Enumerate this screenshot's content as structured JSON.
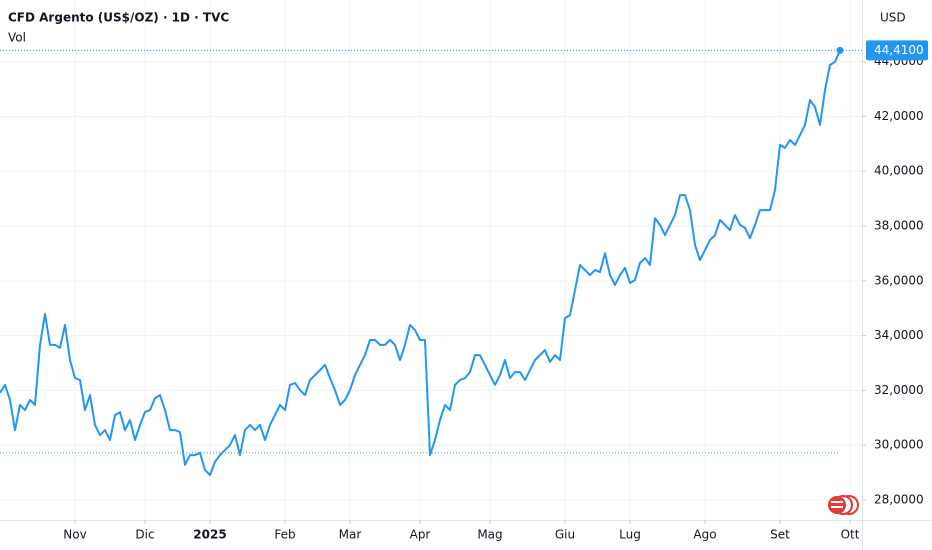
{
  "chart_data": {
    "type": "line",
    "title": "CFD Argento (US$/OZ) · 1D · TVC",
    "subtitle": "Vol",
    "y_axis_label": "USD",
    "color": "#2196f3",
    "grid": true,
    "xlim": [
      0,
      172.4
    ],
    "xticks": [
      {
        "value": 15,
        "label": "Nov"
      },
      {
        "value": 29,
        "label": "Dic"
      },
      {
        "value": 42,
        "label": "2025"
      },
      {
        "value": 57,
        "label": "Feb"
      },
      {
        "value": 70,
        "label": "Mar"
      },
      {
        "value": 84,
        "label": "Apr"
      },
      {
        "value": 98,
        "label": "Mag"
      },
      {
        "value": 113,
        "label": "Giu"
      },
      {
        "value": 126,
        "label": "Lug"
      },
      {
        "value": 141,
        "label": "Ago"
      },
      {
        "value": 156,
        "label": "Set"
      },
      {
        "value": 170,
        "label": "Ott"
      }
    ],
    "ylim": [
      27.27,
      46.25
    ],
    "yticks": [
      {
        "value": 28,
        "label": "28,0000"
      },
      {
        "value": 30,
        "label": "30,0000"
      },
      {
        "value": 32,
        "label": "32,0000"
      },
      {
        "value": 34,
        "label": "34,0000"
      },
      {
        "value": 36,
        "label": "36,0000"
      },
      {
        "value": 38,
        "label": "38,0000"
      },
      {
        "value": 40,
        "label": "40,0000"
      },
      {
        "value": 42,
        "label": "42,0000"
      },
      {
        "value": 44,
        "label": "44,0000"
      }
    ],
    "reference_line": 29.72,
    "last_price": {
      "value": 44.41,
      "label": "44,4100"
    },
    "values": [
      31.91,
      32.2,
      31.65,
      30.55,
      31.47,
      31.28,
      31.65,
      31.47,
      33.66,
      34.79,
      33.66,
      33.66,
      33.55,
      34.39,
      33.11,
      32.45,
      32.38,
      31.28,
      31.83,
      30.74,
      30.37,
      30.55,
      30.19,
      31.1,
      31.21,
      30.55,
      30.92,
      30.19,
      30.74,
      31.21,
      31.28,
      31.72,
      31.83,
      31.28,
      30.55,
      30.55,
      30.48,
      29.28,
      29.64,
      29.64,
      29.72,
      29.09,
      28.91,
      29.39,
      29.64,
      29.82,
      30.01,
      30.37,
      29.64,
      30.55,
      30.74,
      30.55,
      30.74,
      30.19,
      30.74,
      31.1,
      31.47,
      31.28,
      32.2,
      32.27,
      32.01,
      31.83,
      32.38,
      32.56,
      32.74,
      32.93,
      32.45,
      32.01,
      31.47,
      31.65,
      32.01,
      32.56,
      32.93,
      33.29,
      33.84,
      33.84,
      33.66,
      33.66,
      33.84,
      33.66,
      33.11,
      33.66,
      34.39,
      34.2,
      33.84,
      33.84,
      29.64,
      30.19,
      30.92,
      31.47,
      31.28,
      32.2,
      32.38,
      32.45,
      32.67,
      33.29,
      33.29,
      32.93,
      32.56,
      32.2,
      32.56,
      33.11,
      32.45,
      32.67,
      32.67,
      32.38,
      32.74,
      33.11,
      33.29,
      33.47,
      33.04,
      33.29,
      33.11,
      34.64,
      34.75,
      35.66,
      36.58,
      36.39,
      36.21,
      36.39,
      36.32,
      37.01,
      36.21,
      35.85,
      36.21,
      36.47,
      35.92,
      36.03,
      36.65,
      36.83,
      36.58,
      38.29,
      38.04,
      37.67,
      38.04,
      38.4,
      39.13,
      39.13,
      38.58,
      37.31,
      36.76,
      37.12,
      37.49,
      37.67,
      38.22,
      38.04,
      37.85,
      38.4,
      38.04,
      37.93,
      37.56,
      38.04,
      38.58,
      38.58,
      38.58,
      39.31,
      40.96,
      40.85,
      41.14,
      40.96,
      41.32,
      41.69,
      42.6,
      42.34,
      41.69,
      42.96,
      43.88,
      43.99,
      44.41
    ]
  }
}
